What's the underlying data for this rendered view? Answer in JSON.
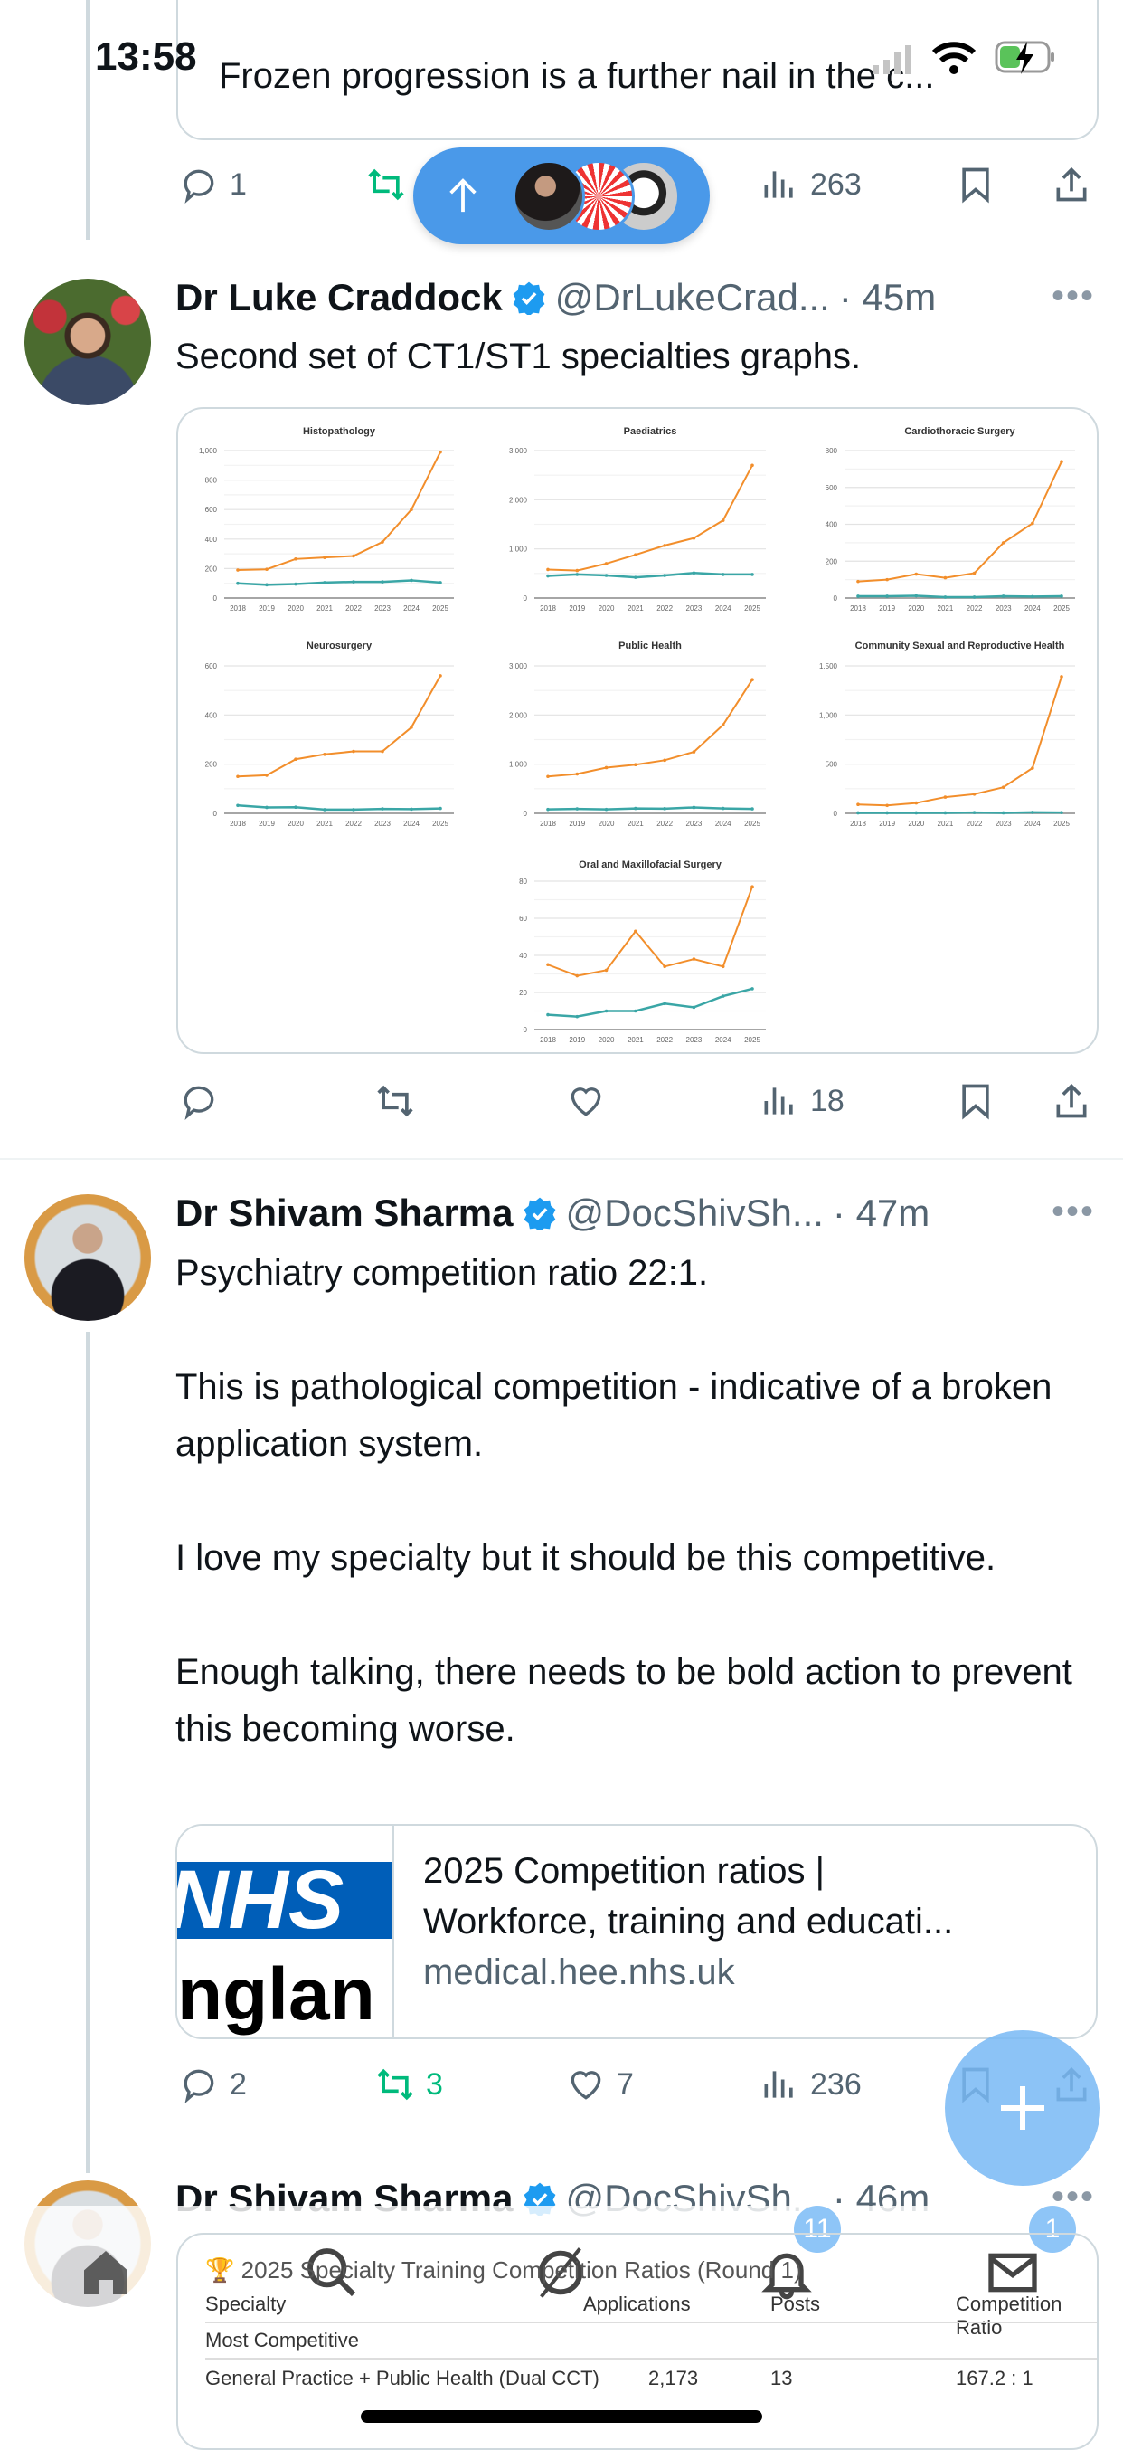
{
  "status_bar": {
    "time": "13:58"
  },
  "quoted_tweet": {
    "text": "Frozen progression is a further nail in the c..."
  },
  "tweet1_actions": {
    "reply_count": "1",
    "views": "263"
  },
  "new_posts_pill": {
    "icon": "arrow-up-icon",
    "color": "#4A99E9"
  },
  "tweet2": {
    "name": "Dr Luke Craddock",
    "handle": "@DrLukeCrad...",
    "time": "· 45m",
    "text": "Second set of CT1/ST1 specialties graphs.",
    "actions": {
      "views": "18"
    }
  },
  "chart_data": [
    {
      "type": "line",
      "title": "Histopathology",
      "categories": [
        "2018",
        "2019",
        "2020",
        "2021",
        "2022",
        "2023",
        "2024",
        "2025"
      ],
      "ylim": [
        0,
        1000
      ],
      "yticks": [
        "0",
        "200",
        "400",
        "600",
        "800",
        "1,000"
      ],
      "grid": true,
      "series": [
        {
          "color": "#F28E2B",
          "values": [
            190,
            195,
            265,
            275,
            285,
            380,
            600,
            990
          ]
        },
        {
          "color": "#3AA6A6",
          "values": [
            100,
            90,
            95,
            105,
            110,
            110,
            120,
            105
          ]
        }
      ]
    },
    {
      "type": "line",
      "title": "Paediatrics",
      "categories": [
        "2018",
        "2019",
        "2020",
        "2021",
        "2022",
        "2023",
        "2024",
        "2025"
      ],
      "ylim": [
        0,
        3000
      ],
      "yticks": [
        "0",
        "1,000",
        "2,000",
        "3,000"
      ],
      "grid": true,
      "series": [
        {
          "color": "#F28E2B",
          "values": [
            580,
            560,
            700,
            880,
            1070,
            1220,
            1580,
            2700
          ]
        },
        {
          "color": "#3AA6A6",
          "values": [
            450,
            480,
            460,
            420,
            460,
            510,
            480,
            480
          ]
        }
      ]
    },
    {
      "type": "line",
      "title": "Cardiothoracic Surgery",
      "categories": [
        "2018",
        "2019",
        "2020",
        "2021",
        "2022",
        "2023",
        "2024",
        "2025"
      ],
      "ylim": [
        0,
        800
      ],
      "yticks": [
        "0",
        "200",
        "400",
        "600",
        "800"
      ],
      "grid": true,
      "series": [
        {
          "color": "#F28E2B",
          "values": [
            90,
            100,
            130,
            110,
            135,
            300,
            405,
            740
          ]
        },
        {
          "color": "#3AA6A6",
          "values": [
            10,
            10,
            12,
            5,
            5,
            10,
            8,
            10
          ]
        }
      ]
    },
    {
      "type": "line",
      "title": "Neurosurgery",
      "categories": [
        "2018",
        "2019",
        "2020",
        "2021",
        "2022",
        "2023",
        "2024",
        "2025"
      ],
      "ylim": [
        0,
        600
      ],
      "yticks": [
        "0",
        "200",
        "400",
        "600"
      ],
      "grid": true,
      "series": [
        {
          "color": "#F28E2B",
          "values": [
            150,
            155,
            220,
            240,
            252,
            252,
            350,
            560
          ]
        },
        {
          "color": "#3AA6A6",
          "values": [
            32,
            24,
            25,
            15,
            15,
            18,
            17,
            20
          ]
        }
      ]
    },
    {
      "type": "line",
      "title": "Public Health",
      "categories": [
        "2018",
        "2019",
        "2020",
        "2021",
        "2022",
        "2023",
        "2024",
        "2025"
      ],
      "ylim": [
        0,
        3000
      ],
      "yticks": [
        "0",
        "1,000",
        "2,000",
        "3,000"
      ],
      "grid": true,
      "series": [
        {
          "color": "#F28E2B",
          "values": [
            750,
            800,
            930,
            990,
            1080,
            1250,
            1800,
            2720
          ]
        },
        {
          "color": "#3AA6A6",
          "values": [
            80,
            90,
            80,
            100,
            95,
            120,
            100,
            90
          ]
        }
      ]
    },
    {
      "type": "line",
      "title": "Community Sexual and Reproductive Health",
      "categories": [
        "2018",
        "2019",
        "2020",
        "2021",
        "2022",
        "2023",
        "2024",
        "2025"
      ],
      "ylim": [
        0,
        1500
      ],
      "yticks": [
        "0",
        "500",
        "1,000",
        "1,500"
      ],
      "grid": true,
      "series": [
        {
          "color": "#F28E2B",
          "values": [
            90,
            80,
            105,
            165,
            195,
            265,
            460,
            1390
          ]
        },
        {
          "color": "#3AA6A6",
          "values": [
            5,
            5,
            5,
            5,
            8,
            5,
            10,
            8
          ]
        }
      ]
    },
    {
      "type": "line",
      "title": "Oral and Maxillofacial Surgery",
      "categories": [
        "2018",
        "2019",
        "2020",
        "2021",
        "2022",
        "2023",
        "2024",
        "2025"
      ],
      "ylim": [
        0,
        80
      ],
      "yticks": [
        "0",
        "20",
        "40",
        "60",
        "80"
      ],
      "grid": true,
      "series": [
        {
          "color": "#F28E2B",
          "values": [
            35,
            29,
            32,
            53,
            34,
            38,
            34,
            77
          ]
        },
        {
          "color": "#3AA6A6",
          "values": [
            8,
            7,
            10,
            10,
            14,
            12,
            18,
            22
          ]
        }
      ]
    }
  ],
  "tweet3": {
    "name": "Dr Shivam Sharma",
    "handle": "@DocShivSh...",
    "time": "· 47m",
    "text": "Psychiatry competition ratio 22:1.\n\nThis is pathological competition - indicative of a broken application system.\n\nI love my specialty but it should be this competitive.\n\nEnough talking, there needs to be bold action to prevent this becoming worse.",
    "link_card": {
      "logo_top": "NHS",
      "logo_bottom": "nglan",
      "title_line1": "2025 Competition ratios |",
      "title_line2": "Workforce, training and educati...",
      "domain": "medical.hee.nhs.uk"
    },
    "actions": {
      "reply_count": "2",
      "retweet_count": "3",
      "like_count": "7",
      "views": "236"
    }
  },
  "tweet4": {
    "name": "Dr Shivam Sharma",
    "handle": "@DocShivSh...",
    "time": "· 46m",
    "table": {
      "title": "2025 Specialty Training Competition Ratios (Round 1)",
      "headers": [
        "Specialty",
        "Applications",
        "Posts",
        "Competition Ratio"
      ],
      "section": "Most Competitive",
      "rows": [
        [
          "General Practice + Public Health (Dual CCT)",
          "2,173",
          "13",
          "167.2 : 1"
        ]
      ]
    }
  },
  "tab_bar": {
    "notifications_badge": "11",
    "messages_badge": "1"
  },
  "fab": {
    "icon": "plus-icon"
  }
}
